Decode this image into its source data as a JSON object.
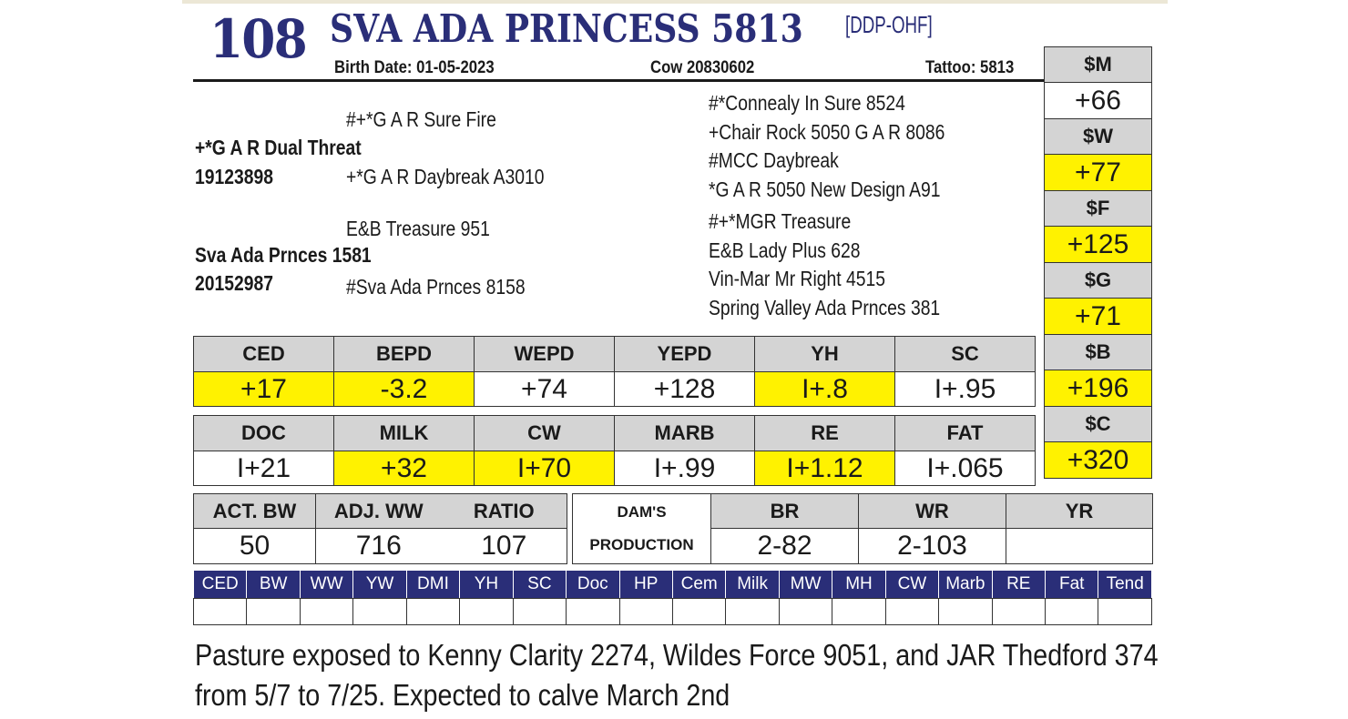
{
  "header": {
    "lot_number": "108",
    "name": "SVA ADA PRINCESS 5813",
    "designation": "[DDP-OHF]",
    "birth_date": "Birth Date: 01-05-2023",
    "registration": "Cow 20830602",
    "tattoo": "Tattoo: 5813"
  },
  "pedigree": {
    "sire": "+*G A R Dual Threat",
    "sire_reg": "19123898",
    "sire_sire": "#+*G A R Sure Fire",
    "sire_dam": "+*G A R Daybreak A3010",
    "dam": "Sva Ada Prnces 1581",
    "dam_reg": "20152987",
    "dam_sire": "E&B Treasure 951",
    "dam_dam": "#Sva Ada Prnces 8158",
    "gg": [
      "#*Connealy In Sure 8524",
      "+Chair Rock 5050 G A R 8086",
      "#MCC Daybreak",
      "*G A R 5050 New Design A91",
      "#+*MGR Treasure",
      "E&B Lady Plus 628",
      "Vin-Mar Mr Right 4515",
      "Spring Valley Ada Prnces 381"
    ]
  },
  "dollar_values": [
    {
      "label": "$M",
      "value": "+66",
      "highlight": false
    },
    {
      "label": "$W",
      "value": "+77",
      "highlight": true
    },
    {
      "label": "$F",
      "value": "+125",
      "highlight": true
    },
    {
      "label": "$G",
      "value": "+71",
      "highlight": true
    },
    {
      "label": "$B",
      "value": "+196",
      "highlight": true
    },
    {
      "label": "$C",
      "value": "+320",
      "highlight": true
    }
  ],
  "epd_row1": {
    "headers": [
      "CED",
      "BEPD",
      "WEPD",
      "YEPD",
      "YH",
      "SC"
    ],
    "values": [
      "+17",
      "-3.2",
      "+74",
      "+128",
      "I+.8",
      "I+.95"
    ],
    "highlight": [
      true,
      true,
      false,
      false,
      true,
      false
    ]
  },
  "epd_row2": {
    "headers": [
      "DOC",
      "MILK",
      "CW",
      "MARB",
      "RE",
      "FAT"
    ],
    "values": [
      "I+21",
      "+32",
      "I+70",
      "I+.99",
      "I+1.12",
      "I+.065"
    ],
    "highlight": [
      false,
      true,
      true,
      false,
      true,
      false
    ]
  },
  "performance": {
    "headers": [
      "ACT. BW",
      "ADJ. WW",
      "RATIO"
    ],
    "values": [
      "50",
      "716",
      "107"
    ]
  },
  "dams_production": {
    "label_line1": "DAM'S",
    "label_line2": "PRODUCTION",
    "headers": [
      "BR",
      "WR",
      "YR"
    ],
    "values": [
      "2-82",
      "2-103",
      ""
    ]
  },
  "genomic_headers": [
    "CED",
    "BW",
    "WW",
    "YW",
    "DMI",
    "YH",
    "SC",
    "Doc",
    "HP",
    "Cem",
    "Milk",
    "MW",
    "MH",
    "CW",
    "Marb",
    "RE",
    "Fat",
    "Tend"
  ],
  "notes": {
    "line1": "Pasture exposed to Kenny Clarity 2274, Wildes Force 9051, and JAR Thedford 374",
    "line2": "from 5/7 to 7/25. Expected to calve March 2nd"
  },
  "colors": {
    "navy": "#2a2e78",
    "highlight_yellow": "#fff200",
    "header_gray": "#d4d4d4"
  }
}
